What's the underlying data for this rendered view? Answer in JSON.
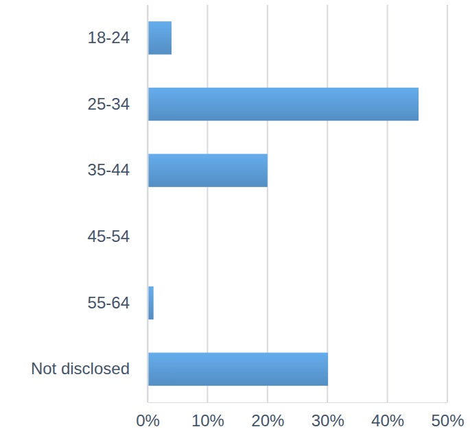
{
  "chart_data": {
    "type": "bar",
    "orientation": "horizontal",
    "categories": [
      "18-24",
      "25-34",
      "35-44",
      "45-54",
      "55-64",
      "Not disclosed"
    ],
    "values": [
      4,
      45.2,
      20,
      0,
      1,
      30.1
    ],
    "color": "#5b9bd5",
    "xlim": [
      0,
      50
    ],
    "xticks": [
      {
        "value": 0,
        "label": "0%"
      },
      {
        "value": 10,
        "label": "10%"
      },
      {
        "value": 20,
        "label": "20%"
      },
      {
        "value": 30,
        "label": "30%"
      },
      {
        "value": 40,
        "label": "40%"
      },
      {
        "value": 50,
        "label": "50%"
      }
    ],
    "grid": true
  }
}
